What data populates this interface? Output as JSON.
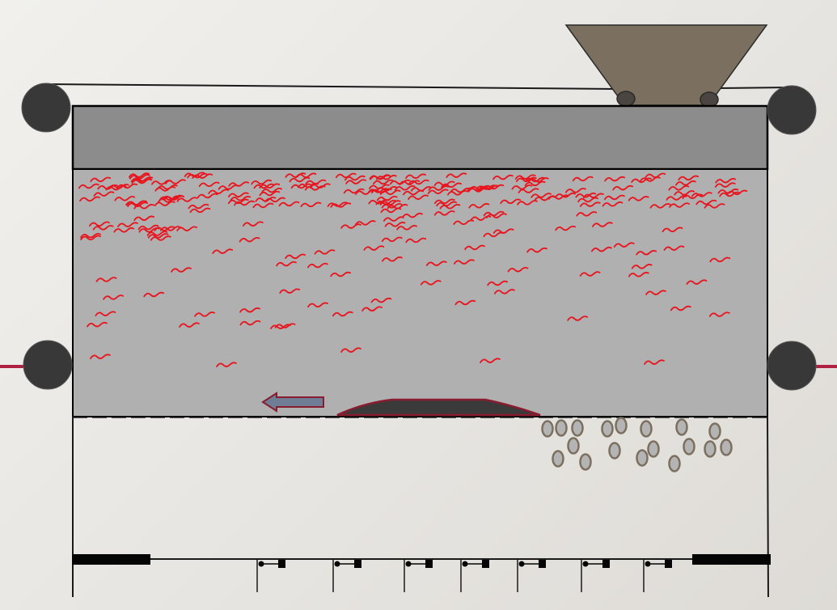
{
  "diagram": {
    "colors": {
      "background": "#eceae6",
      "roller": "#383838",
      "belt_line": "#1a1a1a",
      "top_block": "#8c8c8c",
      "chamber": "#b0b0b0",
      "red_mark": "#e8141e",
      "hopper": "#7b7060",
      "mound_fill": "#3a3a3a",
      "mound_edge": "#8a1c30",
      "arrow_fill": "#6f7e94",
      "arrow_edge": "#8a1c30",
      "pellet_fill": "#b4b4b4",
      "pellet_edge": "#7b7060",
      "side_line": "#b02040"
    },
    "components": {
      "hopper": "hopper-icon",
      "roller": "roller-icon",
      "arrow": "left-arrow-icon",
      "mound": "mound-icon",
      "pellet": "pellet-icon",
      "squiggle": "squiggle-icon",
      "bottom_bar": "bar-icon",
      "pin_joint": "pin-joint-icon"
    },
    "counts": {
      "rollers": 6,
      "pellets": 20,
      "pin_joints": 7
    }
  }
}
